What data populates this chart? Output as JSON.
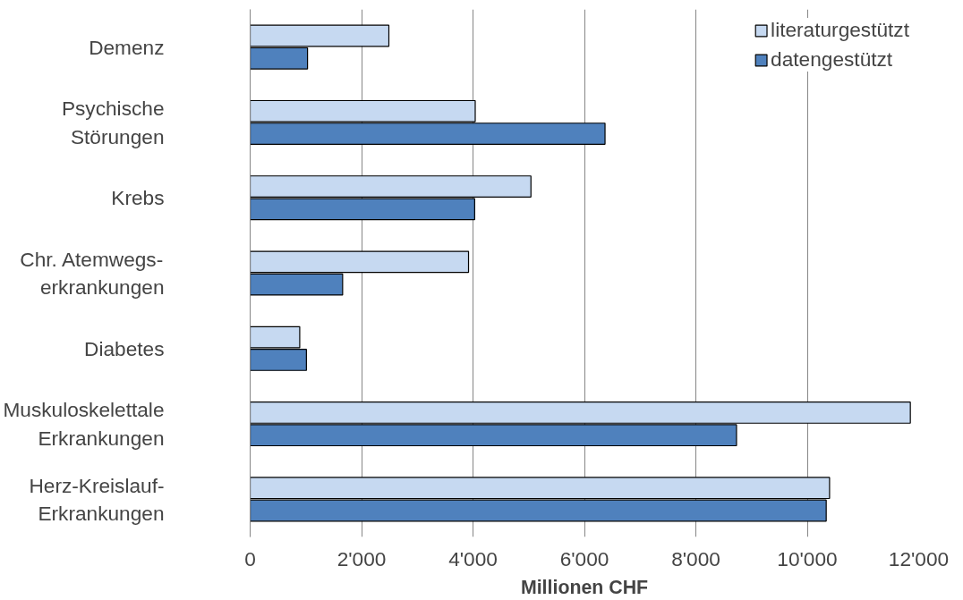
{
  "chart_data": {
    "type": "bar",
    "orientation": "horizontal",
    "xlabel": "Millionen CHF",
    "categories": [
      "Demenz",
      "Psychische\nStörungen",
      "Krebs",
      "Chr. Atemwegs-\nerkrankungen",
      "Diabetes",
      "Muskuloskelettale\nErkrankungen",
      "Herz-Kreislauf-\nErkrankungen"
    ],
    "series": [
      {
        "name": "literaturgestützt",
        "color": "#c6d9f1",
        "values": [
          2490,
          4040,
          5040,
          3920,
          890,
          11850,
          10400
        ]
      },
      {
        "name": "datengestützt",
        "color": "#4f81bd",
        "values": [
          1030,
          6370,
          4030,
          1660,
          1010,
          8730,
          10340
        ]
      }
    ],
    "xlim": [
      0,
      12000
    ],
    "xticks": [
      {
        "value": 0,
        "label": "0"
      },
      {
        "value": 2000,
        "label": "2'000"
      },
      {
        "value": 4000,
        "label": "4'000"
      },
      {
        "value": 6000,
        "label": "6'000"
      },
      {
        "value": 8000,
        "label": "8'000"
      },
      {
        "value": 10000,
        "label": "10'000"
      },
      {
        "value": 12000,
        "label": "12'000"
      }
    ],
    "grid": "x",
    "legend": "top right"
  }
}
